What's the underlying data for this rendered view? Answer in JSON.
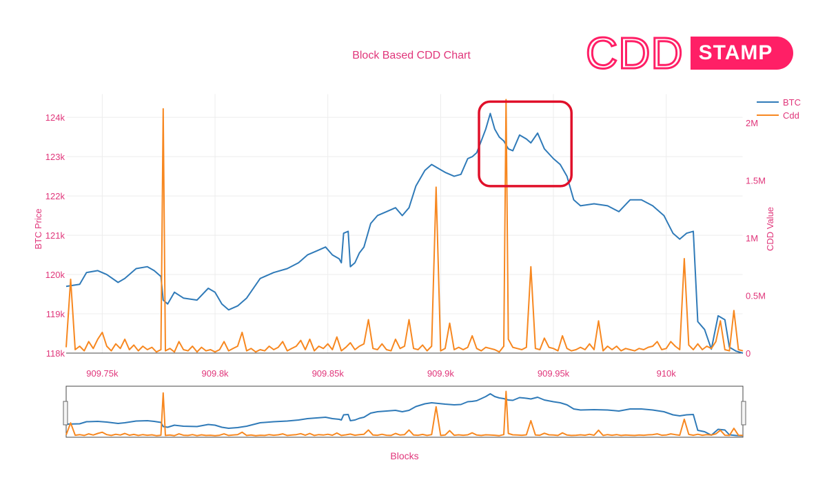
{
  "logo": {
    "text_outline": "CDD",
    "text_badge": "STAMP"
  },
  "chart_data": {
    "type": "line",
    "title": "Block Based CDD Chart",
    "xlabel": "Blocks",
    "ylabel_left": "BTC Price",
    "ylabel_right": "CDD Value",
    "xlim": [
      909734,
      910034
    ],
    "ylim_left": [
      118000,
      124600
    ],
    "ylim_right": [
      0,
      2250000
    ],
    "x_ticks": [
      909750,
      909800,
      909850,
      909900,
      909950,
      910000
    ],
    "x_tick_labels": [
      "909.75k",
      "909.8k",
      "909.85k",
      "909.9k",
      "909.95k",
      "910k"
    ],
    "y_left_ticks": [
      118000,
      119000,
      120000,
      121000,
      122000,
      123000,
      124000
    ],
    "y_left_tick_labels": [
      "118k",
      "119k",
      "120k",
      "121k",
      "122k",
      "123k",
      "124k"
    ],
    "y_right_ticks": [
      0,
      500000,
      1000000,
      1500000,
      2000000
    ],
    "y_right_tick_labels": [
      "0",
      "0.5M",
      "1M",
      "1.5M",
      "2M"
    ],
    "grid": true,
    "legend": "top-right",
    "highlight_box": {
      "x_range": [
        909917,
        909958
      ],
      "y_range_left": [
        122250,
        124400
      ],
      "color": "#e0102a"
    },
    "range_slider": true,
    "series": [
      {
        "name": "BTC",
        "color": "#2f7ab8",
        "axis": "left",
        "points": [
          [
            909734,
            119700
          ],
          [
            909740,
            119750
          ],
          [
            909743,
            120050
          ],
          [
            909748,
            120100
          ],
          [
            909752,
            120000
          ],
          [
            909757,
            119800
          ],
          [
            909760,
            119900
          ],
          [
            909765,
            120150
          ],
          [
            909770,
            120200
          ],
          [
            909773,
            120100
          ],
          [
            909776,
            119950
          ],
          [
            909777,
            119350
          ],
          [
            909779,
            119250
          ],
          [
            909782,
            119550
          ],
          [
            909786,
            119400
          ],
          [
            909792,
            119350
          ],
          [
            909797,
            119650
          ],
          [
            909800,
            119550
          ],
          [
            909803,
            119250
          ],
          [
            909806,
            119100
          ],
          [
            909810,
            119200
          ],
          [
            909814,
            119400
          ],
          [
            909820,
            119900
          ],
          [
            909826,
            120050
          ],
          [
            909832,
            120150
          ],
          [
            909837,
            120300
          ],
          [
            909841,
            120500
          ],
          [
            909845,
            120600
          ],
          [
            909849,
            120700
          ],
          [
            909852,
            120500
          ],
          [
            909855,
            120400
          ],
          [
            909856,
            120300
          ],
          [
            909857,
            121050
          ],
          [
            909859,
            121100
          ],
          [
            909860,
            120200
          ],
          [
            909862,
            120300
          ],
          [
            909864,
            120550
          ],
          [
            909866,
            120700
          ],
          [
            909869,
            121300
          ],
          [
            909872,
            121500
          ],
          [
            909876,
            121600
          ],
          [
            909880,
            121700
          ],
          [
            909883,
            121500
          ],
          [
            909886,
            121700
          ],
          [
            909889,
            122250
          ],
          [
            909893,
            122650
          ],
          [
            909896,
            122800
          ],
          [
            909899,
            122700
          ],
          [
            909902,
            122600
          ],
          [
            909906,
            122500
          ],
          [
            909909,
            122550
          ],
          [
            909912,
            122950
          ],
          [
            909914,
            123000
          ],
          [
            909916,
            123100
          ],
          [
            909918,
            123400
          ],
          [
            909920,
            123700
          ],
          [
            909922,
            124100
          ],
          [
            909924,
            123700
          ],
          [
            909926,
            123500
          ],
          [
            909928,
            123400
          ],
          [
            909930,
            123200
          ],
          [
            909932,
            123150
          ],
          [
            909935,
            123550
          ],
          [
            909938,
            123450
          ],
          [
            909940,
            123350
          ],
          [
            909943,
            123600
          ],
          [
            909946,
            123200
          ],
          [
            909950,
            122950
          ],
          [
            909953,
            122800
          ],
          [
            909956,
            122500
          ],
          [
            909959,
            121900
          ],
          [
            909962,
            121750
          ],
          [
            909968,
            121800
          ],
          [
            909974,
            121750
          ],
          [
            909979,
            121600
          ],
          [
            909984,
            121900
          ],
          [
            909989,
            121900
          ],
          [
            909994,
            121750
          ],
          [
            909999,
            121500
          ],
          [
            910003,
            121050
          ],
          [
            910006,
            120900
          ],
          [
            910009,
            121050
          ],
          [
            910012,
            121100
          ],
          [
            910014,
            118800
          ],
          [
            910017,
            118600
          ],
          [
            910020,
            118100
          ],
          [
            910023,
            118950
          ],
          [
            910026,
            118850
          ],
          [
            910028,
            118150
          ],
          [
            910031,
            118050
          ],
          [
            910034,
            118000
          ]
        ]
      },
      {
        "name": "Cdd",
        "color": "#f7871f",
        "axis": "right",
        "points": [
          [
            909734,
            50000
          ],
          [
            909736,
            640000
          ],
          [
            909738,
            30000
          ],
          [
            909740,
            60000
          ],
          [
            909742,
            20000
          ],
          [
            909744,
            100000
          ],
          [
            909746,
            40000
          ],
          [
            909748,
            120000
          ],
          [
            909750,
            180000
          ],
          [
            909752,
            60000
          ],
          [
            909754,
            20000
          ],
          [
            909756,
            80000
          ],
          [
            909758,
            40000
          ],
          [
            909760,
            120000
          ],
          [
            909762,
            30000
          ],
          [
            909764,
            70000
          ],
          [
            909766,
            20000
          ],
          [
            909768,
            60000
          ],
          [
            909770,
            30000
          ],
          [
            909772,
            50000
          ],
          [
            909774,
            10000
          ],
          [
            909776,
            30000
          ],
          [
            909777,
            2120000
          ],
          [
            909778,
            20000
          ],
          [
            909780,
            40000
          ],
          [
            909782,
            10000
          ],
          [
            909784,
            100000
          ],
          [
            909786,
            30000
          ],
          [
            909788,
            20000
          ],
          [
            909790,
            60000
          ],
          [
            909792,
            10000
          ],
          [
            909794,
            50000
          ],
          [
            909796,
            20000
          ],
          [
            909798,
            30000
          ],
          [
            909800,
            10000
          ],
          [
            909802,
            30000
          ],
          [
            909804,
            100000
          ],
          [
            909806,
            20000
          ],
          [
            909808,
            40000
          ],
          [
            909810,
            60000
          ],
          [
            909812,
            180000
          ],
          [
            909814,
            20000
          ],
          [
            909816,
            40000
          ],
          [
            909818,
            10000
          ],
          [
            909820,
            30000
          ],
          [
            909822,
            20000
          ],
          [
            909824,
            60000
          ],
          [
            909826,
            30000
          ],
          [
            909828,
            50000
          ],
          [
            909830,
            100000
          ],
          [
            909832,
            20000
          ],
          [
            909834,
            40000
          ],
          [
            909836,
            60000
          ],
          [
            909838,
            110000
          ],
          [
            909840,
            30000
          ],
          [
            909842,
            120000
          ],
          [
            909844,
            20000
          ],
          [
            909846,
            60000
          ],
          [
            909848,
            40000
          ],
          [
            909850,
            80000
          ],
          [
            909852,
            30000
          ],
          [
            909854,
            140000
          ],
          [
            909856,
            20000
          ],
          [
            909858,
            50000
          ],
          [
            909860,
            90000
          ],
          [
            909862,
            30000
          ],
          [
            909864,
            60000
          ],
          [
            909866,
            80000
          ],
          [
            909868,
            290000
          ],
          [
            909870,
            40000
          ],
          [
            909872,
            30000
          ],
          [
            909874,
            80000
          ],
          [
            909876,
            30000
          ],
          [
            909878,
            20000
          ],
          [
            909880,
            120000
          ],
          [
            909882,
            40000
          ],
          [
            909884,
            60000
          ],
          [
            909886,
            290000
          ],
          [
            909888,
            40000
          ],
          [
            909890,
            30000
          ],
          [
            909892,
            70000
          ],
          [
            909894,
            20000
          ],
          [
            909896,
            60000
          ],
          [
            909898,
            1440000
          ],
          [
            909900,
            20000
          ],
          [
            909902,
            40000
          ],
          [
            909904,
            260000
          ],
          [
            909906,
            30000
          ],
          [
            909908,
            50000
          ],
          [
            909910,
            30000
          ],
          [
            909912,
            50000
          ],
          [
            909914,
            150000
          ],
          [
            909916,
            40000
          ],
          [
            909918,
            20000
          ],
          [
            909920,
            50000
          ],
          [
            909922,
            40000
          ],
          [
            909924,
            30000
          ],
          [
            909926,
            10000
          ],
          [
            909928,
            60000
          ],
          [
            909929,
            2200000
          ],
          [
            909930,
            120000
          ],
          [
            909932,
            50000
          ],
          [
            909934,
            40000
          ],
          [
            909936,
            30000
          ],
          [
            909938,
            50000
          ],
          [
            909940,
            750000
          ],
          [
            909942,
            40000
          ],
          [
            909944,
            30000
          ],
          [
            909946,
            130000
          ],
          [
            909948,
            50000
          ],
          [
            909950,
            40000
          ],
          [
            909952,
            20000
          ],
          [
            909954,
            150000
          ],
          [
            909956,
            40000
          ],
          [
            909958,
            20000
          ],
          [
            909960,
            30000
          ],
          [
            909962,
            50000
          ],
          [
            909964,
            30000
          ],
          [
            909966,
            80000
          ],
          [
            909968,
            30000
          ],
          [
            909970,
            280000
          ],
          [
            909972,
            20000
          ],
          [
            909974,
            60000
          ],
          [
            909976,
            30000
          ],
          [
            909978,
            60000
          ],
          [
            909980,
            20000
          ],
          [
            909982,
            40000
          ],
          [
            909984,
            30000
          ],
          [
            909986,
            20000
          ],
          [
            909988,
            40000
          ],
          [
            909990,
            30000
          ],
          [
            909992,
            50000
          ],
          [
            909994,
            60000
          ],
          [
            909996,
            100000
          ],
          [
            909998,
            30000
          ],
          [
            910000,
            40000
          ],
          [
            910002,
            100000
          ],
          [
            910004,
            60000
          ],
          [
            910006,
            30000
          ],
          [
            910008,
            820000
          ],
          [
            910010,
            70000
          ],
          [
            910012,
            30000
          ],
          [
            910014,
            80000
          ],
          [
            910016,
            30000
          ],
          [
            910018,
            60000
          ],
          [
            910020,
            40000
          ],
          [
            910022,
            100000
          ],
          [
            910024,
            280000
          ],
          [
            910026,
            30000
          ],
          [
            910028,
            20000
          ],
          [
            910030,
            370000
          ],
          [
            910032,
            30000
          ],
          [
            910034,
            20000
          ]
        ]
      }
    ]
  }
}
